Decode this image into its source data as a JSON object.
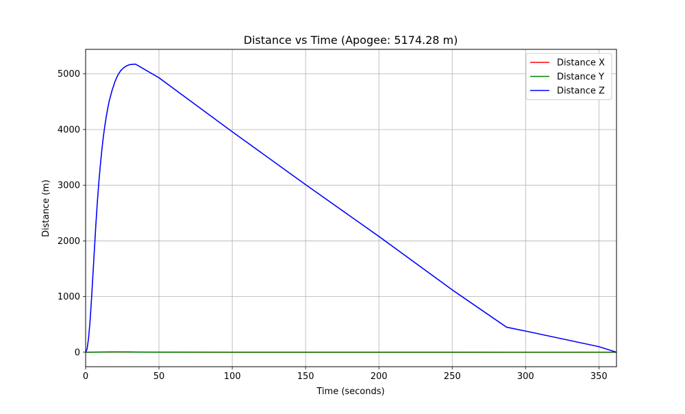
{
  "chart_data": {
    "type": "line",
    "title": "Distance vs Time (Apogee: 5174.28 m)",
    "xlabel": "Time (seconds)",
    "ylabel": "Distance (m)",
    "xlim": [
      0,
      362
    ],
    "ylim": [
      -260,
      5440
    ],
    "xticks": [
      0,
      50,
      100,
      150,
      200,
      250,
      300,
      350
    ],
    "yticks": [
      0,
      1000,
      2000,
      3000,
      4000,
      5000
    ],
    "grid": true,
    "legend_position": "top-right",
    "series": [
      {
        "name": "Distance X",
        "color": "#ff0000",
        "x": [
          0,
          10,
          20,
          30,
          35,
          50,
          100,
          150,
          200,
          250,
          287,
          300,
          350,
          362
        ],
        "y": [
          0,
          2,
          4,
          4,
          3,
          2,
          1,
          1,
          1,
          1,
          0,
          0,
          0,
          0
        ]
      },
      {
        "name": "Distance Y",
        "color": "#008000",
        "x": [
          0,
          10,
          20,
          30,
          35,
          50,
          100,
          150,
          200,
          250,
          287,
          300,
          350,
          362
        ],
        "y": [
          0,
          3,
          5,
          4,
          2,
          0,
          0,
          0,
          0,
          0,
          0,
          0,
          0,
          0
        ]
      },
      {
        "name": "Distance Z",
        "color": "#0000ff",
        "x": [
          0,
          1,
          2,
          3,
          4,
          5,
          6,
          7,
          8,
          9,
          10,
          11,
          12,
          13,
          14,
          15,
          16,
          18,
          20,
          22,
          24,
          26,
          28,
          30,
          32,
          34,
          50,
          100,
          150,
          200,
          250,
          287,
          300,
          350,
          362
        ],
        "y": [
          0,
          60,
          250,
          550,
          950,
          1400,
          1850,
          2300,
          2700,
          3050,
          3350,
          3620,
          3850,
          4050,
          4220,
          4370,
          4500,
          4700,
          4860,
          4980,
          5060,
          5110,
          5145,
          5165,
          5172,
          5174.28,
          4930,
          3960,
          3010,
          2080,
          1120,
          450,
          380,
          100,
          0
        ]
      }
    ]
  }
}
